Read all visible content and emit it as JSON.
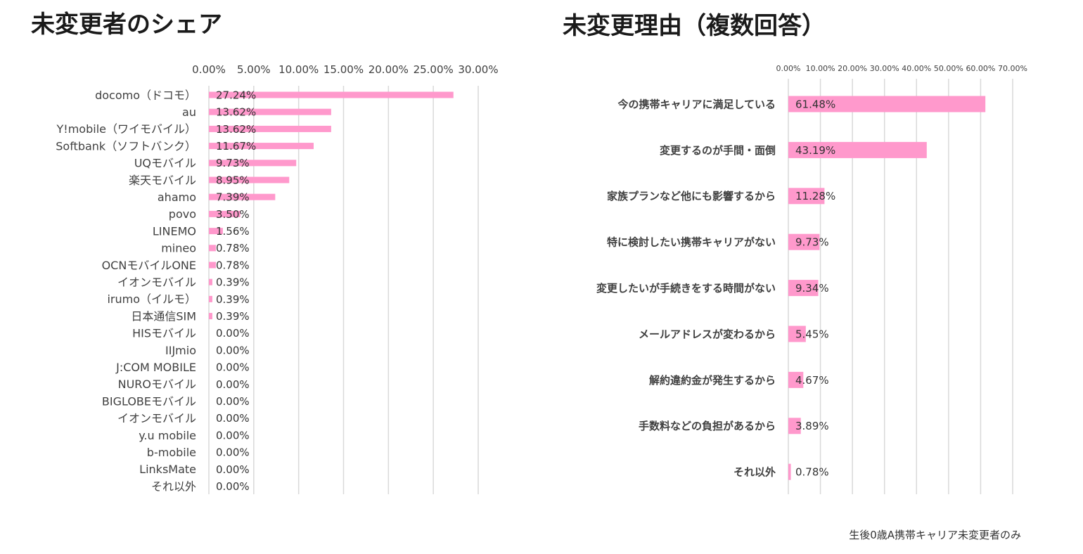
{
  "titles": {
    "left": "未変更者のシェア",
    "right": "未変更理由（複数回答）"
  },
  "footnote": "生後0歳A携帯キャリア未変更者のみ",
  "colors": {
    "bar": "#FF99CC",
    "grid": "#D9D9D9",
    "text": "#404040"
  },
  "chart_data": [
    {
      "type": "bar",
      "orientation": "horizontal",
      "title": "未変更者のシェア",
      "xlim": [
        0,
        30
      ],
      "x_ticks": [
        "0.00%",
        "5.00%",
        "10.00%",
        "15.00%",
        "20.00%",
        "25.00%",
        "30.00%"
      ],
      "categories": [
        "docomo（ドコモ）",
        "au",
        "Y!mobile（ワイモバイル）",
        "Softbank（ソフトバンク）",
        "UQモバイル",
        "楽天モバイル",
        "ahamo",
        "povo",
        "LINEMO",
        "mineo",
        "OCNモバイルONE",
        "イオンモバイル",
        "irumo（イルモ）",
        "日本通信SIM",
        "HISモバイル",
        "IIJmio",
        "J:COM MOBILE",
        "NUROモバイル",
        "BIGLOBEモバイル",
        "イオンモバイル",
        "y.u mobile",
        "b-mobile",
        "LinksMate",
        "それ以外"
      ],
      "values": [
        27.24,
        13.62,
        13.62,
        11.67,
        9.73,
        8.95,
        7.39,
        3.5,
        1.56,
        0.78,
        0.78,
        0.39,
        0.39,
        0.39,
        0.0,
        0.0,
        0.0,
        0.0,
        0.0,
        0.0,
        0.0,
        0.0,
        0.0,
        0.0
      ],
      "data_labels": [
        "27.24%",
        "13.62%",
        "13.62%",
        "11.67%",
        "9.73%",
        "8.95%",
        "7.39%",
        "3.50%",
        "1.56%",
        "0.78%",
        "0.78%",
        "0.39%",
        "0.39%",
        "0.39%",
        "0.00%",
        "0.00%",
        "0.00%",
        "0.00%",
        "0.00%",
        "0.00%",
        "0.00%",
        "0.00%",
        "0.00%",
        "0.00%"
      ]
    },
    {
      "type": "bar",
      "orientation": "horizontal",
      "title": "未変更理由（複数回答）",
      "xlim": [
        0,
        70
      ],
      "x_ticks": [
        "0.00%",
        "10.00%",
        "20.00%",
        "30.00%",
        "40.00%",
        "50.00%",
        "60.00%",
        "70.00%"
      ],
      "categories": [
        "今の携帯キャリアに満足している",
        "変更するのが手間・面倒",
        "家族プランなど他にも影響するから",
        "特に検討したい携帯キャリアがない",
        "変更したいが手続きをする時間がない",
        "メールアドレスが変わるから",
        "解約違約金が発生するから",
        "手数料などの負担があるから",
        "それ以外"
      ],
      "values": [
        61.48,
        43.19,
        11.28,
        9.73,
        9.34,
        5.45,
        4.67,
        3.89,
        0.78
      ],
      "data_labels": [
        "61.48%",
        "43.19%",
        "11.28%",
        "9.73%",
        "9.34%",
        "5.45%",
        "4.67%",
        "3.89%",
        "0.78%"
      ]
    }
  ]
}
